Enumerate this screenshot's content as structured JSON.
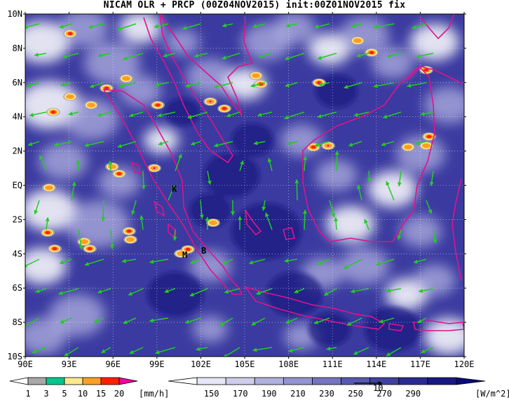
{
  "title": "NICAM OLR + PRCP (00Z04NOV2015) init:00Z01NOV2015 fix",
  "map": {
    "lon_labels": [
      "90E",
      "93E",
      "96E",
      "99E",
      "102E",
      "105E",
      "108E",
      "111E",
      "114E",
      "117E",
      "120E"
    ],
    "lat_labels": [
      "10N",
      "8N",
      "6N",
      "4N",
      "2N",
      "EQ",
      "2S",
      "4S",
      "6S",
      "8S",
      "10S"
    ],
    "markers": [
      {
        "id": "K",
        "text": "K"
      },
      {
        "id": "M",
        "text": "M"
      },
      {
        "id": "B",
        "text": "B"
      }
    ],
    "colors": {
      "coastline": "#e0138c",
      "wind_arrow": "#22cc22",
      "grid": "#ffffff"
    }
  },
  "precip_colorbar": {
    "ticks": [
      "1",
      "3",
      "5",
      "10",
      "15",
      "20"
    ],
    "unit": "[mm/h]",
    "colors": [
      "#ffffff",
      "#a8a8a8",
      "#00c88c",
      "#ffe88c",
      "#ffa020",
      "#ff2000",
      "#f000a0"
    ]
  },
  "olr_colorbar": {
    "ticks": [
      "150",
      "170",
      "190",
      "210",
      "230",
      "250",
      "270",
      "290"
    ],
    "unit": "[W/m^2]",
    "vector_ref": "10",
    "colors": [
      "#ffffff",
      "#e6e6f4",
      "#cdcdea",
      "#b0b0de",
      "#9494d2",
      "#7474c2",
      "#5858b2",
      "#4040a4",
      "#2a2a96",
      "#181886",
      "#0a0a78"
    ]
  }
}
